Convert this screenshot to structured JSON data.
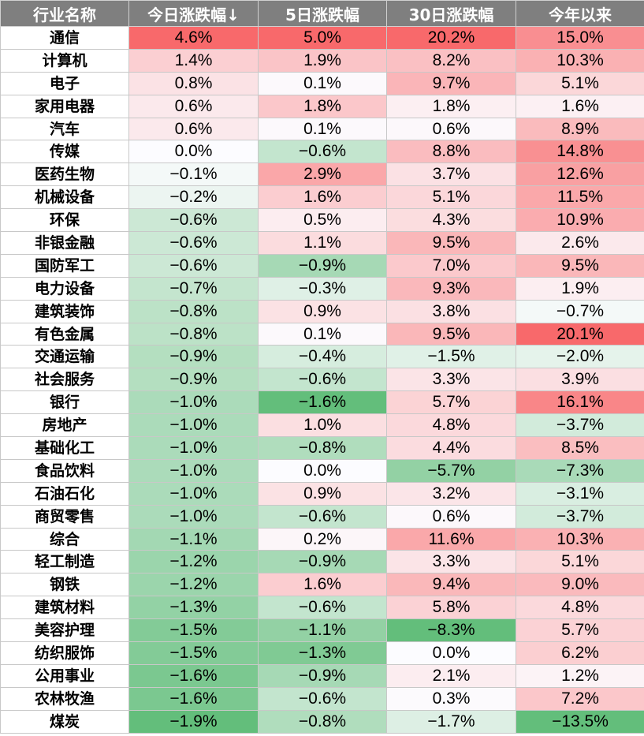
{
  "headers": [
    "行业名称",
    "今日涨跌幅↓",
    "5日涨跌幅",
    "30日涨跌幅",
    "今年以来"
  ],
  "rows": [
    {
      "name": "通信",
      "values": [
        "4.6%",
        "5.0%",
        "20.2%",
        "15.0%"
      ]
    },
    {
      "name": "计算机",
      "values": [
        "1.4%",
        "1.9%",
        "8.2%",
        "10.3%"
      ]
    },
    {
      "name": "电子",
      "values": [
        "0.8%",
        "0.1%",
        "9.7%",
        "5.1%"
      ]
    },
    {
      "name": "家用电器",
      "values": [
        "0.6%",
        "1.8%",
        "1.8%",
        "1.6%"
      ]
    },
    {
      "name": "汽车",
      "values": [
        "0.6%",
        "0.1%",
        "0.6%",
        "8.9%"
      ]
    },
    {
      "name": "传媒",
      "values": [
        "0.0%",
        "−0.6%",
        "8.8%",
        "14.8%"
      ]
    },
    {
      "name": "医药生物",
      "values": [
        "−0.1%",
        "2.9%",
        "3.7%",
        "12.6%"
      ]
    },
    {
      "name": "机械设备",
      "values": [
        "−0.2%",
        "1.6%",
        "5.1%",
        "11.5%"
      ]
    },
    {
      "name": "环保",
      "values": [
        "−0.6%",
        "0.5%",
        "4.3%",
        "10.9%"
      ]
    },
    {
      "name": "非银金融",
      "values": [
        "−0.6%",
        "1.1%",
        "9.5%",
        "2.6%"
      ]
    },
    {
      "name": "国防军工",
      "values": [
        "−0.6%",
        "−0.9%",
        "7.0%",
        "9.5%"
      ]
    },
    {
      "name": "电力设备",
      "values": [
        "−0.7%",
        "−0.3%",
        "9.3%",
        "1.9%"
      ]
    },
    {
      "name": "建筑装饰",
      "values": [
        "−0.8%",
        "0.9%",
        "3.8%",
        "−0.7%"
      ]
    },
    {
      "name": "有色金属",
      "values": [
        "−0.8%",
        "0.1%",
        "9.5%",
        "20.1%"
      ]
    },
    {
      "name": "交通运输",
      "values": [
        "−0.9%",
        "−0.4%",
        "−1.5%",
        "−2.0%"
      ]
    },
    {
      "name": "社会服务",
      "values": [
        "−0.9%",
        "−0.6%",
        "3.3%",
        "3.9%"
      ]
    },
    {
      "name": "银行",
      "values": [
        "−1.0%",
        "−1.6%",
        "5.7%",
        "16.1%"
      ]
    },
    {
      "name": "房地产",
      "values": [
        "−1.0%",
        "1.0%",
        "4.8%",
        "−3.7%"
      ]
    },
    {
      "name": "基础化工",
      "values": [
        "−1.0%",
        "−0.8%",
        "4.4%",
        "8.5%"
      ]
    },
    {
      "name": "食品饮料",
      "values": [
        "−1.0%",
        "0.0%",
        "−5.7%",
        "−7.3%"
      ]
    },
    {
      "name": "石油石化",
      "values": [
        "−1.0%",
        "0.9%",
        "3.2%",
        "−3.1%"
      ]
    },
    {
      "name": "商贸零售",
      "values": [
        "−1.0%",
        "−0.6%",
        "0.6%",
        "−3.7%"
      ]
    },
    {
      "name": "综合",
      "values": [
        "−1.1%",
        "0.2%",
        "11.6%",
        "10.3%"
      ]
    },
    {
      "name": "轻工制造",
      "values": [
        "−1.2%",
        "−0.9%",
        "3.3%",
        "5.1%"
      ]
    },
    {
      "name": "钢铁",
      "values": [
        "−1.2%",
        "1.6%",
        "9.4%",
        "9.0%"
      ]
    },
    {
      "name": "建筑材料",
      "values": [
        "−1.3%",
        "−0.6%",
        "5.8%",
        "4.8%"
      ]
    },
    {
      "name": "美容护理",
      "values": [
        "−1.5%",
        "−1.1%",
        "−8.3%",
        "5.7%"
      ]
    },
    {
      "name": "纺织服饰",
      "values": [
        "−1.5%",
        "−1.3%",
        "0.0%",
        "6.2%"
      ]
    },
    {
      "name": "公用事业",
      "values": [
        "−1.6%",
        "−0.9%",
        "2.1%",
        "1.2%"
      ]
    },
    {
      "name": "农林牧渔",
      "values": [
        "−1.6%",
        "−0.6%",
        "0.3%",
        "7.2%"
      ]
    },
    {
      "name": "煤炭",
      "values": [
        "−1.9%",
        "−0.8%",
        "−1.7%",
        "−13.5%"
      ]
    }
  ],
  "colors": {
    "header_bg": "#7f7f7f",
    "header_text": "#ffffff",
    "positive_max": "#f8696b",
    "negative_max": "#63be7b",
    "neutral": "#fcfcff"
  }
}
